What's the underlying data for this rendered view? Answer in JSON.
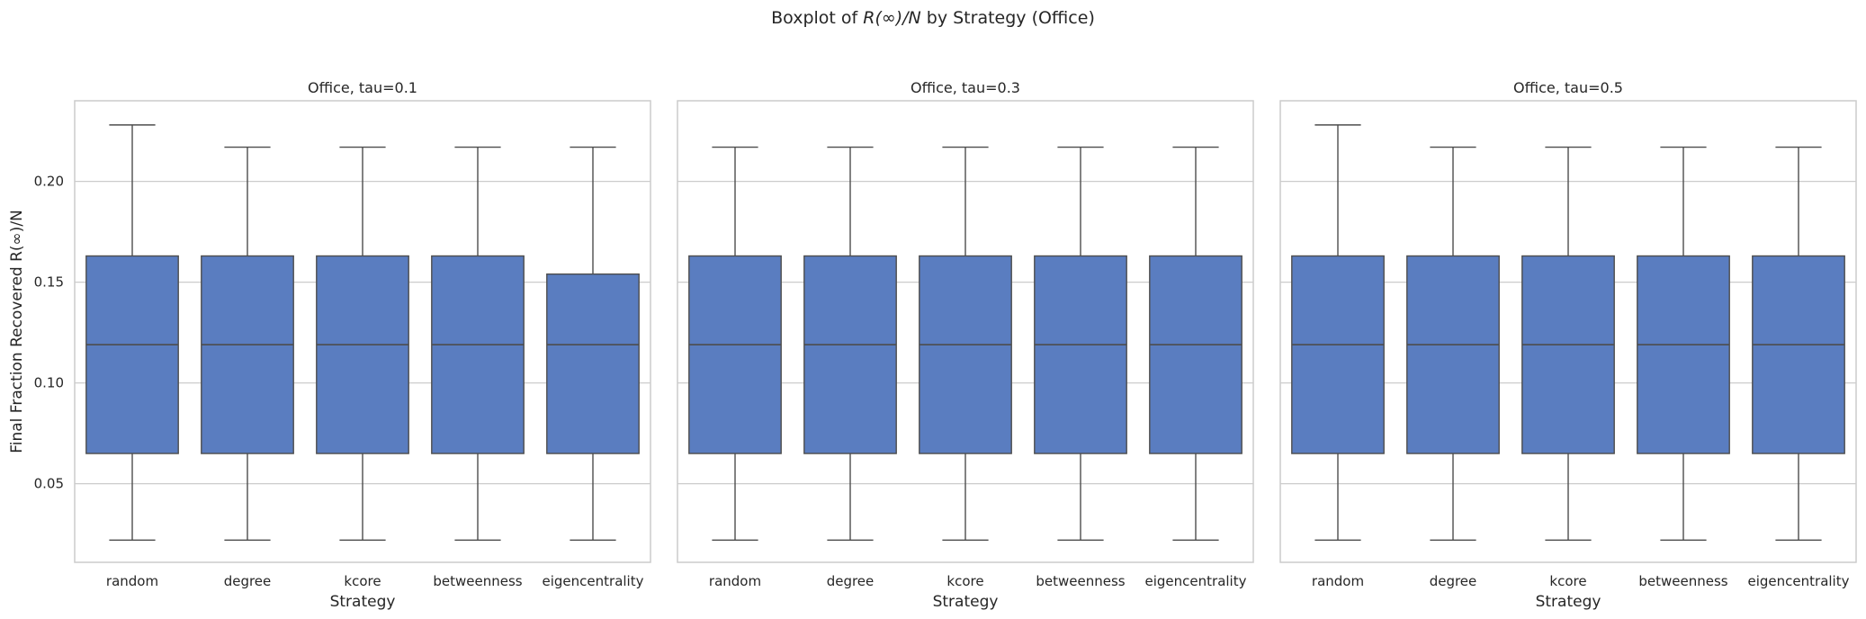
{
  "figure": {
    "suptitle_prefix": "Boxplot of ",
    "suptitle_math": "R(∞)/N",
    "suptitle_suffix": " by Strategy (Office)"
  },
  "colors": {
    "box_fill": "#5a7dc0",
    "line": "#4d4d4d",
    "grid": "#cccccc",
    "spine": "#cccccc"
  },
  "chart_data": [
    {
      "type": "box",
      "title": "Office, tau=0.1",
      "xlabel": "Strategy",
      "ylabel": "Final Fraction Recovered R(∞)/N",
      "categories": [
        "random",
        "degree",
        "kcore",
        "betweenness",
        "eigencentrality"
      ],
      "ylim": [
        0.011,
        0.24
      ],
      "yticks": [
        0.05,
        0.1,
        0.15,
        0.2
      ],
      "ytick_labels": [
        "0.05",
        "0.10",
        "0.15",
        "0.20"
      ],
      "grid": true,
      "boxes": [
        {
          "whislo": 0.022,
          "q1": 0.065,
          "med": 0.119,
          "q3": 0.163,
          "whishi": 0.228
        },
        {
          "whislo": 0.022,
          "q1": 0.065,
          "med": 0.119,
          "q3": 0.163,
          "whishi": 0.217
        },
        {
          "whislo": 0.022,
          "q1": 0.065,
          "med": 0.119,
          "q3": 0.163,
          "whishi": 0.217
        },
        {
          "whislo": 0.022,
          "q1": 0.065,
          "med": 0.119,
          "q3": 0.163,
          "whishi": 0.217
        },
        {
          "whislo": 0.022,
          "q1": 0.065,
          "med": 0.119,
          "q3": 0.154,
          "whishi": 0.217
        }
      ]
    },
    {
      "type": "box",
      "title": "Office, tau=0.3",
      "xlabel": "Strategy",
      "categories": [
        "random",
        "degree",
        "kcore",
        "betweenness",
        "eigencentrality"
      ],
      "ylim": [
        0.011,
        0.24
      ],
      "yticks": [
        0.05,
        0.1,
        0.15,
        0.2
      ],
      "grid": true,
      "boxes": [
        {
          "whislo": 0.022,
          "q1": 0.065,
          "med": 0.119,
          "q3": 0.163,
          "whishi": 0.217
        },
        {
          "whislo": 0.022,
          "q1": 0.065,
          "med": 0.119,
          "q3": 0.163,
          "whishi": 0.217
        },
        {
          "whislo": 0.022,
          "q1": 0.065,
          "med": 0.119,
          "q3": 0.163,
          "whishi": 0.217
        },
        {
          "whislo": 0.022,
          "q1": 0.065,
          "med": 0.119,
          "q3": 0.163,
          "whishi": 0.217
        },
        {
          "whislo": 0.022,
          "q1": 0.065,
          "med": 0.119,
          "q3": 0.163,
          "whishi": 0.217
        }
      ]
    },
    {
      "type": "box",
      "title": "Office, tau=0.5",
      "xlabel": "Strategy",
      "categories": [
        "random",
        "degree",
        "kcore",
        "betweenness",
        "eigencentrality"
      ],
      "ylim": [
        0.011,
        0.24
      ],
      "yticks": [
        0.05,
        0.1,
        0.15,
        0.2
      ],
      "grid": true,
      "boxes": [
        {
          "whislo": 0.022,
          "q1": 0.065,
          "med": 0.119,
          "q3": 0.163,
          "whishi": 0.228
        },
        {
          "whislo": 0.022,
          "q1": 0.065,
          "med": 0.119,
          "q3": 0.163,
          "whishi": 0.217
        },
        {
          "whislo": 0.022,
          "q1": 0.065,
          "med": 0.119,
          "q3": 0.163,
          "whishi": 0.217
        },
        {
          "whislo": 0.022,
          "q1": 0.065,
          "med": 0.119,
          "q3": 0.163,
          "whishi": 0.217
        },
        {
          "whislo": 0.022,
          "q1": 0.065,
          "med": 0.119,
          "q3": 0.163,
          "whishi": 0.217
        }
      ]
    }
  ]
}
